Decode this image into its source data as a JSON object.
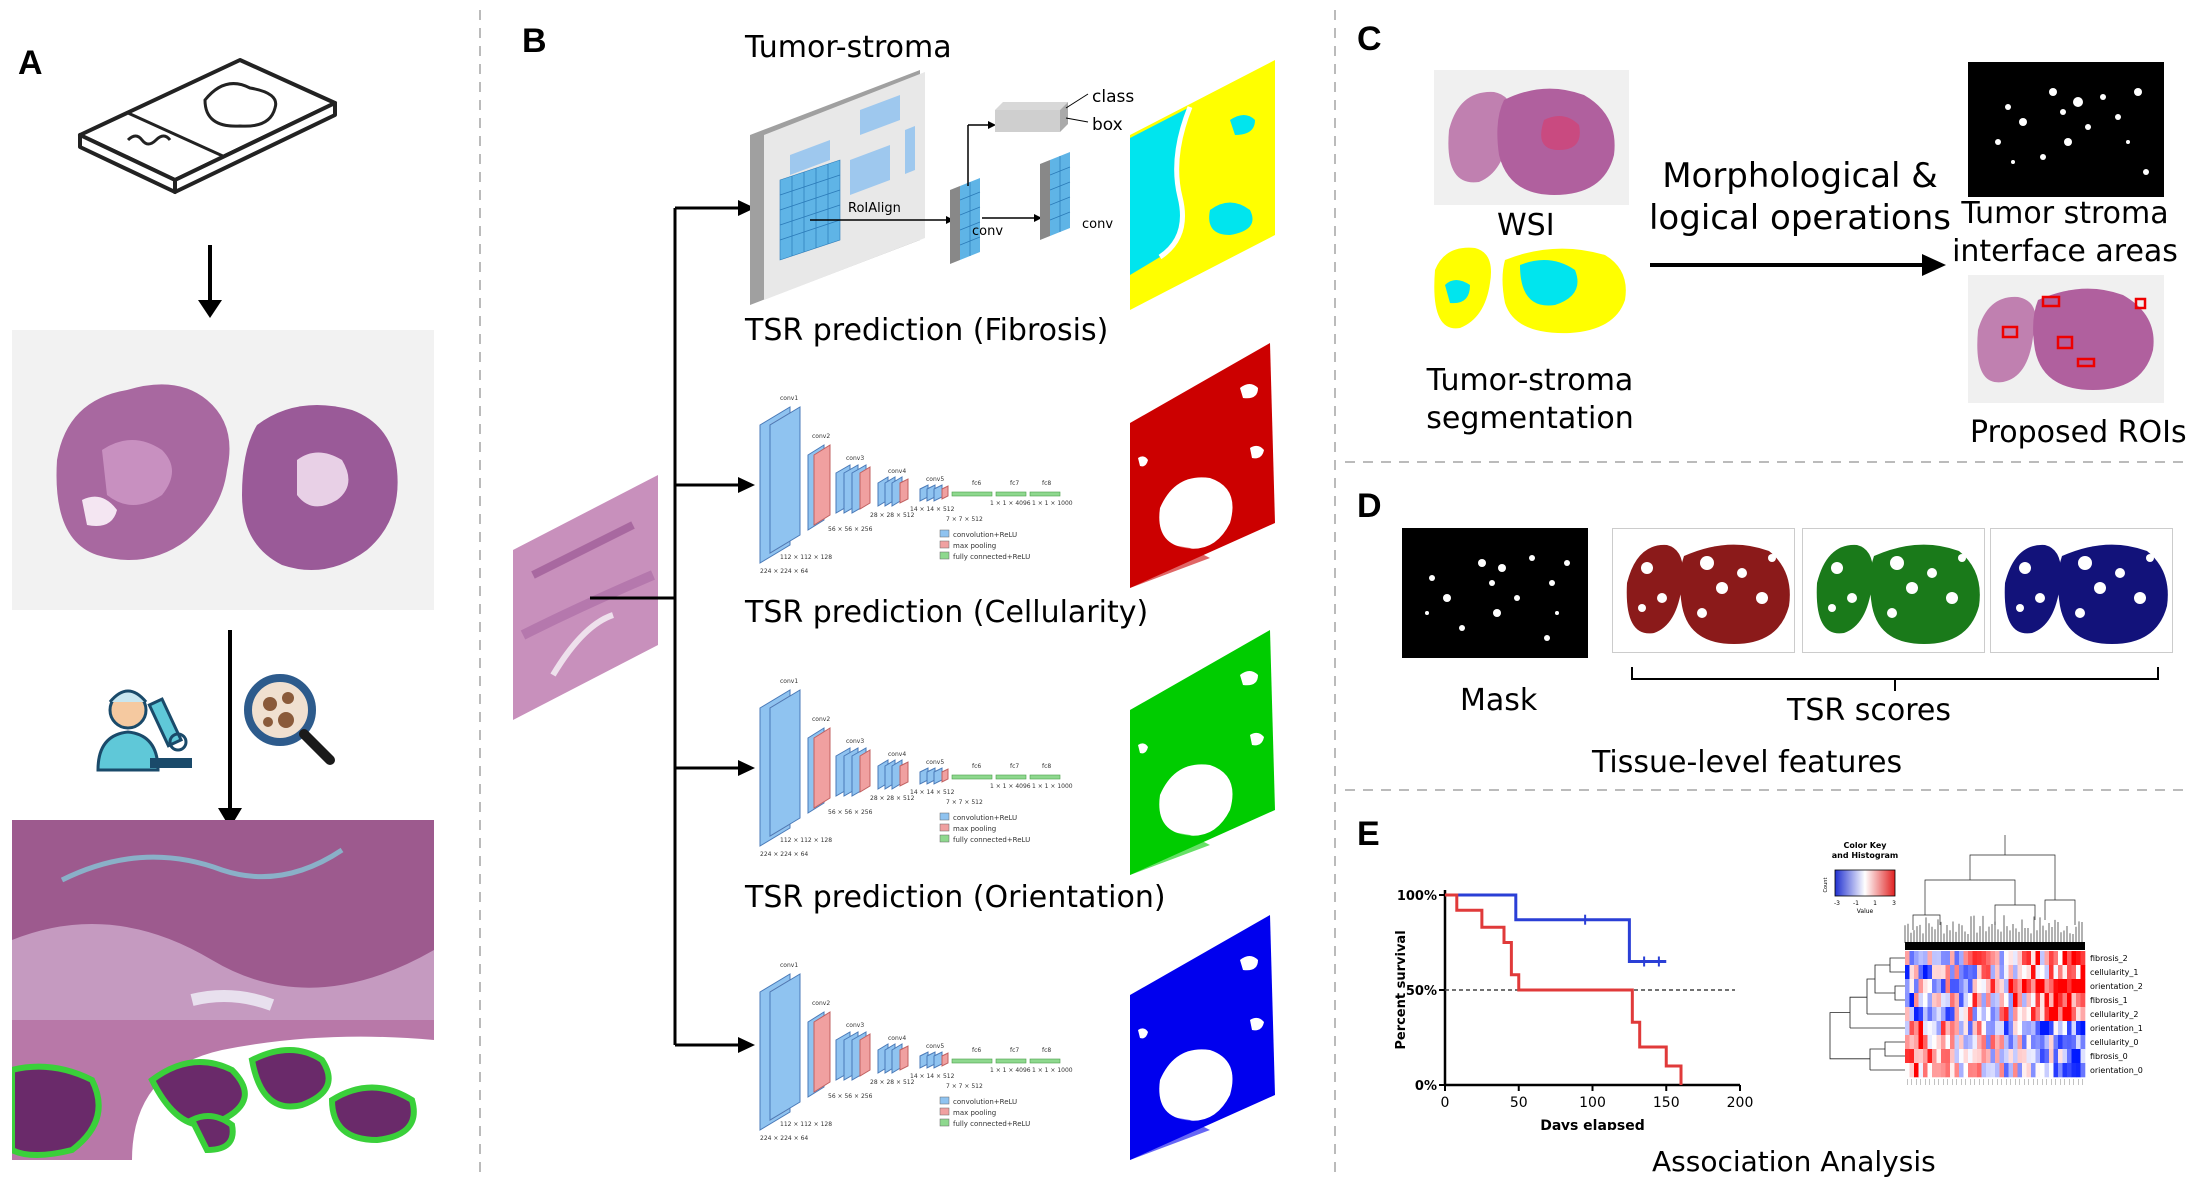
{
  "panels": {
    "a": {
      "label": "A"
    },
    "b": {
      "label": "B",
      "tumor_stroma_title": "Tumor-stroma",
      "class_label": "class",
      "box_label": "box",
      "roialign_label": "RoIAlign",
      "conv_label": "conv",
      "fibrosis_title": "TSR prediction (Fibrosis)",
      "cellularity_title": "TSR prediction (Cellularity)",
      "orientation_title": "TSR prediction (Orientation)",
      "vgg_legend": [
        "convolution+ReLU",
        "max pooling",
        "fully connected+ReLU"
      ],
      "vgg_dims": [
        "224 × 224 × 64",
        "112 × 112 × 128",
        "56 × 56 × 256",
        "28 × 28 × 512",
        "14 × 14 × 512",
        "7 × 7 × 512",
        "1 × 1 × 4096",
        "1 × 1 × 1000"
      ],
      "vgg_layers": [
        "conv1",
        "conv2",
        "conv3",
        "conv4",
        "conv5",
        "fc6",
        "fc7",
        "fc8"
      ],
      "colors": {
        "fibrosis": "#cc0000",
        "cellularity": "#00cc00",
        "orientation": "#0000ee",
        "tumor": "#00e5ee",
        "stroma": "#ffff00"
      }
    },
    "c": {
      "label": "C",
      "wsi_label": "WSI",
      "segmentation_label": "Tumor-stroma\nsegmentation",
      "operations_label": "Morphological &\nlogical operations",
      "interface_label": "Tumor stroma\ninterface areas",
      "rois_label": "Proposed ROIs"
    },
    "d": {
      "label": "D",
      "mask_label": "Mask",
      "tsr_label": "TSR scores",
      "features_label": "Tissue-level features",
      "colors": [
        "#8b1a1a",
        "#1a7a1a",
        "#12127a"
      ]
    },
    "e": {
      "label": "E",
      "footer": "Association Analysis",
      "heatmap_key_title": "Color Key\nand Histogram",
      "heatmap_key_ticks": [
        "-3",
        "-1",
        "1",
        "3"
      ],
      "heatmap_key_value": "Value",
      "heatmap_key_count": "Count",
      "heatmap_rows": [
        "fibrosis_2",
        "cellularity_1",
        "orientation_2",
        "fibrosis_1",
        "cellularity_2",
        "orientation_1",
        "cellularity_0",
        "fibrosis_0",
        "orientation_0"
      ]
    }
  },
  "chart_data": {
    "type": "line",
    "title": "",
    "xlabel": "Days elapsed",
    "ylabel": "Percent survival",
    "xlim": [
      0,
      200
    ],
    "ylim": [
      0,
      100
    ],
    "xticks": [
      "0",
      "50",
      "100",
      "150",
      "200"
    ],
    "yticks": [
      "0%",
      "50%",
      "100%"
    ],
    "reference_line": 50,
    "series": [
      {
        "color": "#2a3fd6",
        "x": [
          0,
          48,
          48,
          125,
          125,
          150
        ],
        "y": [
          100,
          100,
          87,
          87,
          65,
          65
        ]
      },
      {
        "color": "#e03a3a",
        "x": [
          0,
          8,
          8,
          25,
          25,
          40,
          40,
          45,
          45,
          50,
          50,
          127,
          127,
          132,
          132,
          150,
          150,
          160,
          160
        ],
        "y": [
          100,
          100,
          92,
          92,
          83,
          83,
          75,
          75,
          58,
          58,
          50,
          50,
          33,
          33,
          20,
          20,
          10,
          10,
          0
        ]
      }
    ]
  }
}
